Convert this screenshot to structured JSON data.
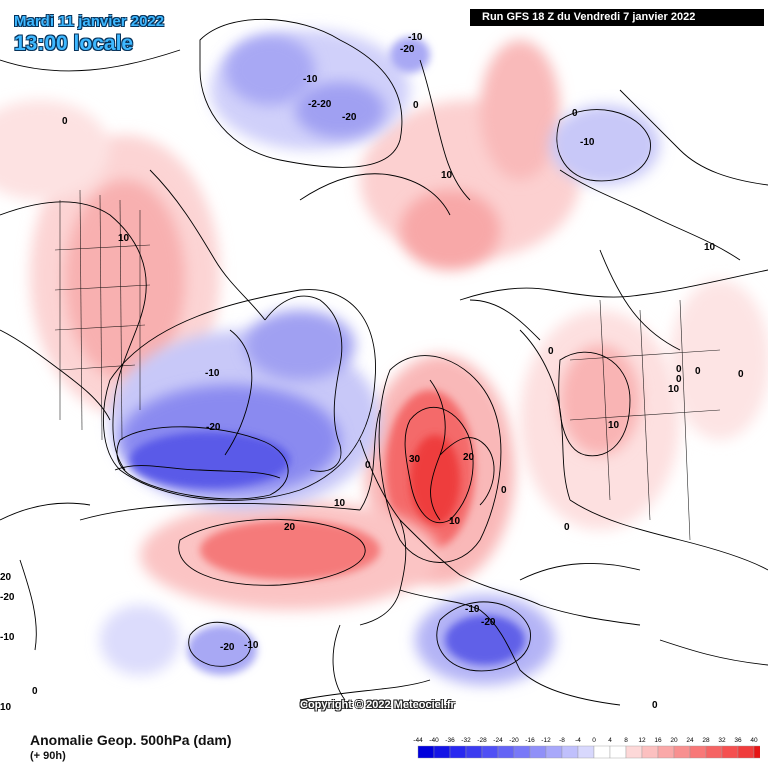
{
  "header": {
    "date": "Mardi 11 janvier 2022",
    "time": "13:00 locale",
    "run": "Run GFS 18 Z du Vendredi 7 janvier 2022"
  },
  "copyright": "Copyright © 2022 Meteociel.fr",
  "footer": {
    "field": "Anomalie Geop. 500hPa (dam)",
    "lead": "(+ 90h)"
  },
  "legend": {
    "ticks": [
      "-44",
      "-40",
      "-36",
      "-32",
      "-28",
      "-24",
      "-20",
      "-16",
      "-12",
      "-8",
      "-4",
      "0",
      "4",
      "8",
      "12",
      "16",
      "20",
      "24",
      "28",
      "32",
      "36",
      "40"
    ],
    "colors": [
      "#0000dc",
      "#1414e6",
      "#2828f0",
      "#3c3cf0",
      "#5050f5",
      "#6464f5",
      "#7878f8",
      "#9090f8",
      "#a8a8fa",
      "#c0c0fc",
      "#d8d8fd",
      "#ffffff",
      "#ffffff",
      "#fdd8d8",
      "#fcc0c0",
      "#faa8a8",
      "#f89090",
      "#f87878",
      "#f56464",
      "#f55050",
      "#f03c3c",
      "#e61414"
    ]
  },
  "map": {
    "contour_labels": [
      "0",
      "0",
      "0",
      "0",
      "0",
      "0",
      "0",
      "0",
      "0",
      "0",
      "0",
      "0",
      "0",
      "10",
      "10",
      "10",
      "10",
      "10",
      "10",
      "10",
      "10",
      "-10",
      "-10",
      "-10",
      "-10",
      "-10",
      "-10",
      "-10",
      "-20",
      "-20",
      "-20",
      "-20",
      "-20",
      "-20",
      "20",
      "20",
      "20",
      "30",
      "-2-20"
    ]
  }
}
